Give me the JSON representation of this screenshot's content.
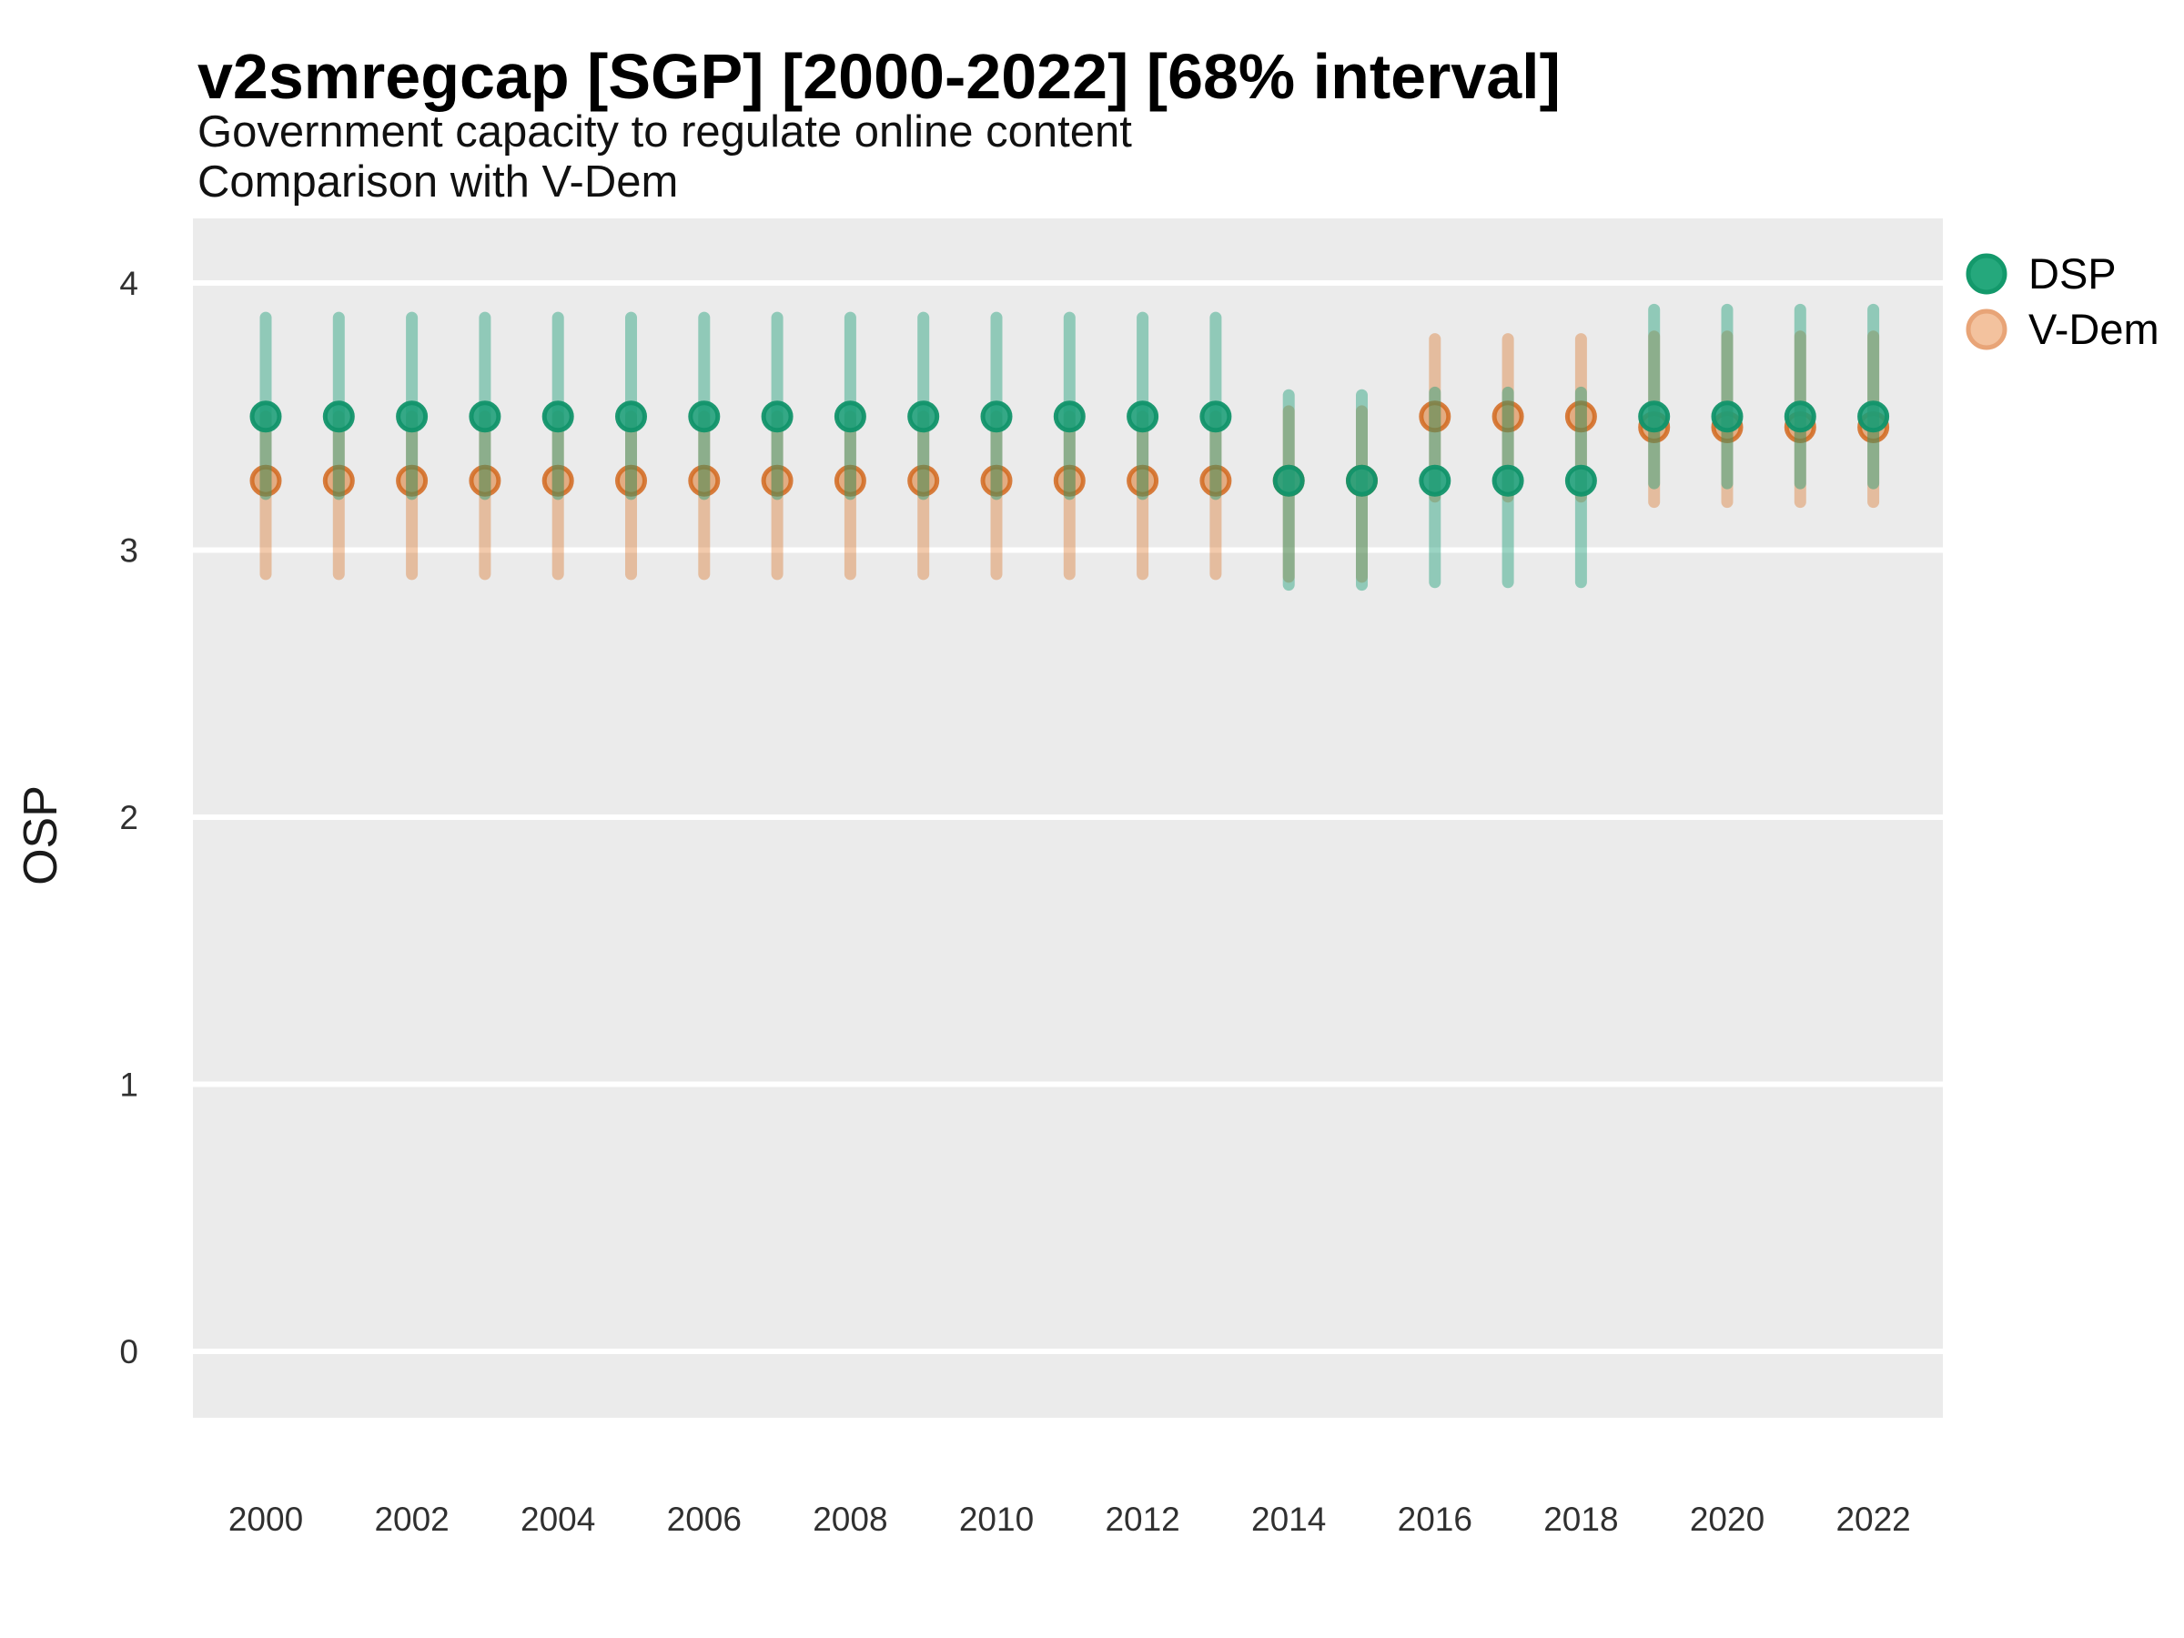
{
  "header": {
    "title": "v2smregcap [SGP] [2000-2022] [68% interval]",
    "subtitle_line1": "Government capacity to regulate online content",
    "subtitle_line2": "Comparison with V-Dem"
  },
  "colors": {
    "panel_bg": "#ebebeb",
    "grid": "#ffffff",
    "dsp_green": "#1b9e77",
    "dsp_point_stroke": "#12946a",
    "vdem_orange": "#d95f02",
    "vdem_point_stroke": "#d2691e"
  },
  "chart_data": {
    "type": "scatter",
    "title": "v2smregcap [SGP] [2000-2022] [68% interval]",
    "subtitle": [
      "Government capacity to regulate online content",
      "Comparison with V-Dem"
    ],
    "interval_label": "68% interval",
    "country": "SGP",
    "xlabel": "",
    "ylabel": "OSP",
    "ylim": [
      -0.26,
      4.24
    ],
    "xlim": [
      1999,
      2023
    ],
    "y_ticks": [
      4,
      3,
      2,
      1,
      0
    ],
    "x_ticks": [
      2000,
      2002,
      2004,
      2006,
      2008,
      2010,
      2012,
      2014,
      2016,
      2018,
      2020,
      2022
    ],
    "grid": "horizontal-major-only",
    "legend_position": "right",
    "series": [
      {
        "name": "DSP",
        "color": "#1b9e77",
        "points": [
          {
            "year": 2000,
            "est": 3.5,
            "lo": 3.21,
            "hi": 3.87
          },
          {
            "year": 2001,
            "est": 3.5,
            "lo": 3.21,
            "hi": 3.87
          },
          {
            "year": 2002,
            "est": 3.5,
            "lo": 3.21,
            "hi": 3.87
          },
          {
            "year": 2003,
            "est": 3.5,
            "lo": 3.21,
            "hi": 3.87
          },
          {
            "year": 2004,
            "est": 3.5,
            "lo": 3.21,
            "hi": 3.87
          },
          {
            "year": 2005,
            "est": 3.5,
            "lo": 3.21,
            "hi": 3.87
          },
          {
            "year": 2006,
            "est": 3.5,
            "lo": 3.21,
            "hi": 3.87
          },
          {
            "year": 2007,
            "est": 3.5,
            "lo": 3.21,
            "hi": 3.87
          },
          {
            "year": 2008,
            "est": 3.5,
            "lo": 3.21,
            "hi": 3.87
          },
          {
            "year": 2009,
            "est": 3.5,
            "lo": 3.21,
            "hi": 3.87
          },
          {
            "year": 2010,
            "est": 3.5,
            "lo": 3.21,
            "hi": 3.87
          },
          {
            "year": 2011,
            "est": 3.5,
            "lo": 3.21,
            "hi": 3.87
          },
          {
            "year": 2012,
            "est": 3.5,
            "lo": 3.21,
            "hi": 3.87
          },
          {
            "year": 2013,
            "est": 3.5,
            "lo": 3.21,
            "hi": 3.87
          },
          {
            "year": 2014,
            "est": 3.26,
            "lo": 2.87,
            "hi": 3.58
          },
          {
            "year": 2015,
            "est": 3.26,
            "lo": 2.87,
            "hi": 3.58
          },
          {
            "year": 2016,
            "est": 3.26,
            "lo": 2.88,
            "hi": 3.59
          },
          {
            "year": 2017,
            "est": 3.26,
            "lo": 2.88,
            "hi": 3.59
          },
          {
            "year": 2018,
            "est": 3.26,
            "lo": 2.88,
            "hi": 3.59
          },
          {
            "year": 2019,
            "est": 3.5,
            "lo": 3.25,
            "hi": 3.9
          },
          {
            "year": 2020,
            "est": 3.5,
            "lo": 3.25,
            "hi": 3.9
          },
          {
            "year": 2021,
            "est": 3.5,
            "lo": 3.25,
            "hi": 3.9
          },
          {
            "year": 2022,
            "est": 3.5,
            "lo": 3.25,
            "hi": 3.9
          }
        ]
      },
      {
        "name": "V-Dem",
        "color": "#d95f02",
        "points": [
          {
            "year": 2000,
            "est": 3.26,
            "lo": 2.91,
            "hi": 3.5
          },
          {
            "year": 2001,
            "est": 3.26,
            "lo": 2.91,
            "hi": 3.5
          },
          {
            "year": 2002,
            "est": 3.26,
            "lo": 2.91,
            "hi": 3.5
          },
          {
            "year": 2003,
            "est": 3.26,
            "lo": 2.91,
            "hi": 3.5
          },
          {
            "year": 2004,
            "est": 3.26,
            "lo": 2.91,
            "hi": 3.5
          },
          {
            "year": 2005,
            "est": 3.26,
            "lo": 2.91,
            "hi": 3.5
          },
          {
            "year": 2006,
            "est": 3.26,
            "lo": 2.91,
            "hi": 3.5
          },
          {
            "year": 2007,
            "est": 3.26,
            "lo": 2.91,
            "hi": 3.5
          },
          {
            "year": 2008,
            "est": 3.26,
            "lo": 2.91,
            "hi": 3.5
          },
          {
            "year": 2009,
            "est": 3.26,
            "lo": 2.91,
            "hi": 3.5
          },
          {
            "year": 2010,
            "est": 3.26,
            "lo": 2.91,
            "hi": 3.5
          },
          {
            "year": 2011,
            "est": 3.26,
            "lo": 2.91,
            "hi": 3.5
          },
          {
            "year": 2012,
            "est": 3.26,
            "lo": 2.91,
            "hi": 3.5
          },
          {
            "year": 2013,
            "est": 3.26,
            "lo": 2.91,
            "hi": 3.5
          },
          {
            "year": 2014,
            "est": 3.26,
            "lo": 2.9,
            "hi": 3.52
          },
          {
            "year": 2015,
            "est": 3.26,
            "lo": 2.9,
            "hi": 3.52
          },
          {
            "year": 2016,
            "est": 3.5,
            "lo": 3.2,
            "hi": 3.79
          },
          {
            "year": 2017,
            "est": 3.5,
            "lo": 3.2,
            "hi": 3.79
          },
          {
            "year": 2018,
            "est": 3.5,
            "lo": 3.2,
            "hi": 3.79
          },
          {
            "year": 2019,
            "est": 3.46,
            "lo": 3.18,
            "hi": 3.8
          },
          {
            "year": 2020,
            "est": 3.46,
            "lo": 3.18,
            "hi": 3.8
          },
          {
            "year": 2021,
            "est": 3.46,
            "lo": 3.18,
            "hi": 3.8
          },
          {
            "year": 2022,
            "est": 3.46,
            "lo": 3.18,
            "hi": 3.8
          }
        ]
      }
    ]
  }
}
